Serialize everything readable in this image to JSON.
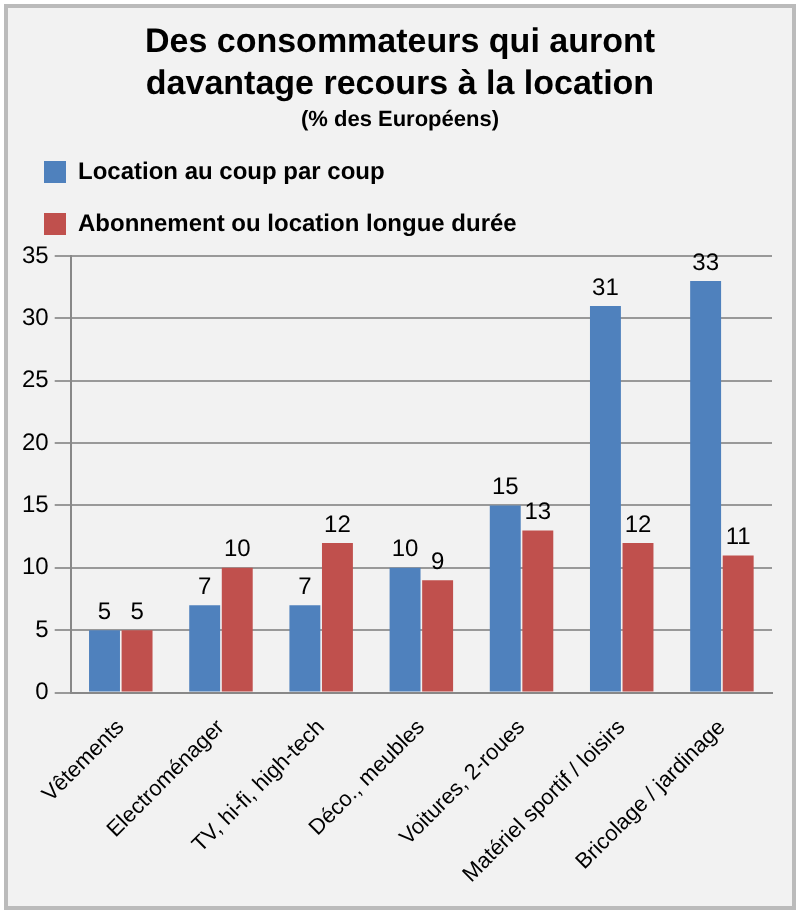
{
  "chart_data": {
    "type": "bar",
    "title": "Des consommateurs qui auront davantage recours à la location",
    "subtitle": "(% des Européens)",
    "categories": [
      "Vêtements",
      "Electroménager",
      "TV, hi-fi, high-tech",
      "Déco., meubles",
      "Voitures, 2-roues",
      "Matériel sportif / loisirs",
      "Bricolage / jardinage"
    ],
    "series": [
      {
        "name": "Location au coup par coup",
        "color": "#4f81bd",
        "values": [
          5,
          7,
          7,
          10,
          15,
          31,
          33
        ]
      },
      {
        "name": "Abonnement ou location longue durée",
        "color": "#c0504d",
        "values": [
          5,
          10,
          12,
          9,
          13,
          12,
          11
        ]
      }
    ],
    "ylim": [
      0,
      35
    ],
    "yticks": [
      0,
      5,
      10,
      15,
      20,
      25,
      30,
      35
    ],
    "grid": "y",
    "legend": "top",
    "data_labels": true
  }
}
